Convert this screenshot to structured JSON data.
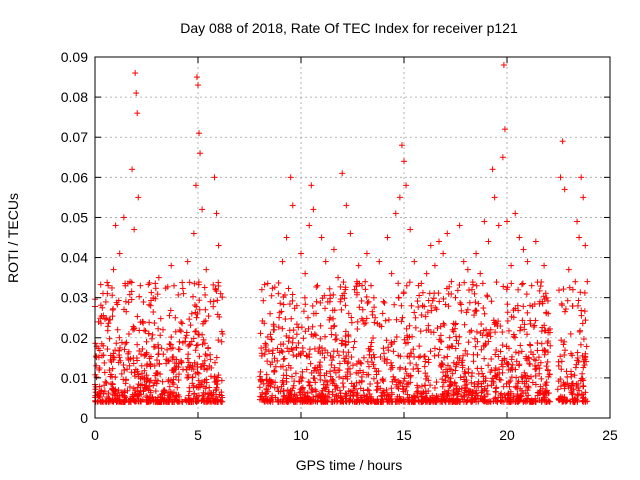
{
  "chart_data": {
    "type": "scatter",
    "title": "Day 088 of 2018, Rate Of TEC Index for receiver p121",
    "xlabel": "GPS time / hours",
    "ylabel": "ROTI / TECUs",
    "xlim": [
      0,
      25
    ],
    "ylim": [
      0,
      0.09
    ],
    "x_ticks": [
      0,
      5,
      10,
      15,
      20,
      25
    ],
    "x_tick_labels": [
      "0",
      "5",
      "10",
      "15",
      "20",
      "25"
    ],
    "y_ticks": [
      0,
      0.01,
      0.02,
      0.03,
      0.04,
      0.05,
      0.06,
      0.07,
      0.08,
      0.09
    ],
    "y_tick_labels": [
      "0",
      "0.01",
      "0.02",
      "0.03",
      "0.04",
      "0.05",
      "0.06",
      "0.07",
      "0.08",
      "0.09"
    ],
    "grid": true,
    "marker": "+",
    "color": "#ff0000",
    "data_gap_hours": [
      6.2,
      8.0
    ],
    "series": [
      {
        "points": [
          [
            0.2,
            0.012
          ],
          [
            0.4,
            0.018
          ],
          [
            0.5,
            0.009
          ],
          [
            0.6,
            0.031
          ],
          [
            0.8,
            0.014
          ],
          [
            0.9,
            0.037
          ],
          [
            1.0,
            0.048
          ],
          [
            1.1,
            0.022
          ],
          [
            1.2,
            0.041
          ],
          [
            1.3,
            0.011
          ],
          [
            1.4,
            0.05
          ],
          [
            1.5,
            0.029
          ],
          [
            1.6,
            0.016
          ],
          [
            1.7,
            0.034
          ],
          [
            1.8,
            0.062
          ],
          [
            1.9,
            0.047
          ],
          [
            1.95,
            0.086
          ],
          [
            2.0,
            0.081
          ],
          [
            2.05,
            0.076
          ],
          [
            2.1,
            0.055
          ],
          [
            2.2,
            0.033
          ],
          [
            2.3,
            0.024
          ],
          [
            2.5,
            0.019
          ],
          [
            2.7,
            0.028
          ],
          [
            2.9,
            0.013
          ],
          [
            3.1,
            0.035
          ],
          [
            3.3,
            0.022
          ],
          [
            3.5,
            0.017
          ],
          [
            3.7,
            0.038
          ],
          [
            3.9,
            0.025
          ],
          [
            4.1,
            0.019
          ],
          [
            4.3,
            0.031
          ],
          [
            4.5,
            0.039
          ],
          [
            4.7,
            0.026
          ],
          [
            4.8,
            0.046
          ],
          [
            4.9,
            0.058
          ],
          [
            4.95,
            0.085
          ],
          [
            5.0,
            0.083
          ],
          [
            5.05,
            0.071
          ],
          [
            5.1,
            0.066
          ],
          [
            5.2,
            0.052
          ],
          [
            5.4,
            0.037
          ],
          [
            5.6,
            0.029
          ],
          [
            5.8,
            0.06
          ],
          [
            5.9,
            0.051
          ],
          [
            6.0,
            0.043
          ],
          [
            6.1,
            0.031
          ],
          [
            6.15,
            0.019
          ],
          [
            8.1,
            0.032
          ],
          [
            8.3,
            0.017
          ],
          [
            8.5,
            0.026
          ],
          [
            8.7,
            0.022
          ],
          [
            8.9,
            0.031
          ],
          [
            9.1,
            0.039
          ],
          [
            9.3,
            0.045
          ],
          [
            9.5,
            0.06
          ],
          [
            9.6,
            0.053
          ],
          [
            9.8,
            0.028
          ],
          [
            10.0,
            0.041
          ],
          [
            10.2,
            0.036
          ],
          [
            10.4,
            0.048
          ],
          [
            10.5,
            0.058
          ],
          [
            10.6,
            0.052
          ],
          [
            10.8,
            0.033
          ],
          [
            11.0,
            0.045
          ],
          [
            11.2,
            0.039
          ],
          [
            11.4,
            0.029
          ],
          [
            11.6,
            0.042
          ],
          [
            11.8,
            0.035
          ],
          [
            12.0,
            0.061
          ],
          [
            12.2,
            0.053
          ],
          [
            12.4,
            0.046
          ],
          [
            12.6,
            0.032
          ],
          [
            12.8,
            0.038
          ],
          [
            13.0,
            0.027
          ],
          [
            13.2,
            0.041
          ],
          [
            13.4,
            0.033
          ],
          [
            13.6,
            0.025
          ],
          [
            13.8,
            0.039
          ],
          [
            14.0,
            0.029
          ],
          [
            14.2,
            0.045
          ],
          [
            14.4,
            0.036
          ],
          [
            14.6,
            0.051
          ],
          [
            14.8,
            0.055
          ],
          [
            14.9,
            0.068
          ],
          [
            15.0,
            0.064
          ],
          [
            15.1,
            0.058
          ],
          [
            15.3,
            0.047
          ],
          [
            15.5,
            0.039
          ],
          [
            15.7,
            0.033
          ],
          [
            15.9,
            0.028
          ],
          [
            16.1,
            0.036
          ],
          [
            16.3,
            0.043
          ],
          [
            16.5,
            0.038
          ],
          [
            16.7,
            0.044
          ],
          [
            16.9,
            0.041
          ],
          [
            17.1,
            0.046
          ],
          [
            17.3,
            0.034
          ],
          [
            17.5,
            0.03
          ],
          [
            17.7,
            0.048
          ],
          [
            17.9,
            0.039
          ],
          [
            18.1,
            0.037
          ],
          [
            18.3,
            0.032
          ],
          [
            18.5,
            0.041
          ],
          [
            18.7,
            0.036
          ],
          [
            18.9,
            0.049
          ],
          [
            19.1,
            0.044
          ],
          [
            19.3,
            0.062
          ],
          [
            19.4,
            0.055
          ],
          [
            19.6,
            0.048
          ],
          [
            19.8,
            0.065
          ],
          [
            19.85,
            0.088
          ],
          [
            19.9,
            0.072
          ],
          [
            20.0,
            0.049
          ],
          [
            20.2,
            0.038
          ],
          [
            20.4,
            0.051
          ],
          [
            20.6,
            0.045
          ],
          [
            20.8,
            0.042
          ],
          [
            21.0,
            0.039
          ],
          [
            21.2,
            0.033
          ],
          [
            21.4,
            0.044
          ],
          [
            21.6,
            0.029
          ],
          [
            21.8,
            0.038
          ],
          [
            22.0,
            0.026
          ],
          [
            22.1,
            0.018
          ],
          [
            22.5,
            0.014
          ],
          [
            22.6,
            0.06
          ],
          [
            22.7,
            0.069
          ],
          [
            22.8,
            0.057
          ],
          [
            23.0,
            0.037
          ],
          [
            23.2,
            0.032
          ],
          [
            23.4,
            0.049
          ],
          [
            23.5,
            0.045
          ],
          [
            23.6,
            0.06
          ],
          [
            23.7,
            0.055
          ],
          [
            23.8,
            0.043
          ],
          [
            23.9,
            0.034
          ]
        ]
      }
    ]
  }
}
